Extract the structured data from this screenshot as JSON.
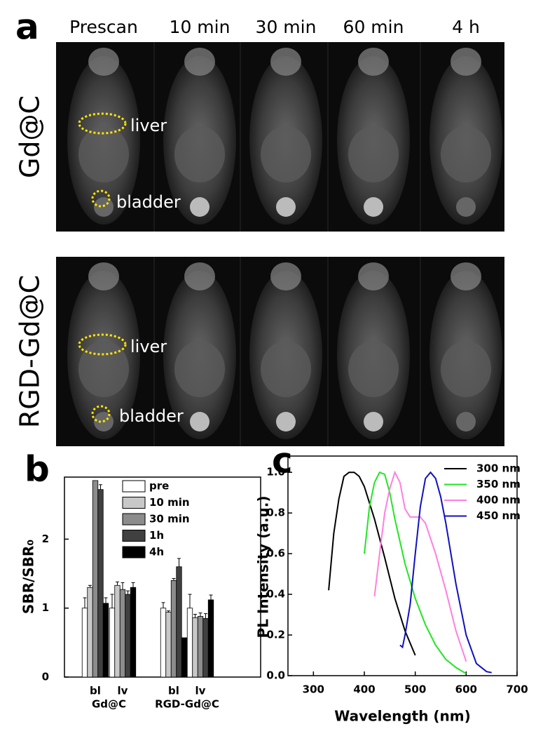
{
  "panel_a": {
    "label": "a",
    "columns": [
      "Prescan",
      "10 min",
      "30 min",
      "60 min",
      "4 h"
    ],
    "rows": [
      {
        "label": "Gd@C",
        "annotations": [
          "liver",
          "bladder"
        ]
      },
      {
        "label": "RGD-Gd@C",
        "annotations": [
          "liver",
          "bladder"
        ]
      }
    ]
  },
  "chart_data": [
    {
      "type": "bar",
      "panel_label": "b",
      "ylabel": "SBR/SBR₀",
      "categories": [
        "bl",
        "lv",
        "bl",
        "lv"
      ],
      "group_labels": [
        "Gd@C",
        "RGD-Gd@C"
      ],
      "ylim": [
        0,
        2.9
      ],
      "yticks": [
        0,
        1,
        2
      ],
      "legend": "top-right",
      "series": [
        {
          "name": "pre",
          "color": "#ffffff",
          "values": [
            1.0,
            1.0,
            1.0,
            1.0
          ],
          "errors": [
            0.15,
            0.2,
            0.08,
            0.2
          ]
        },
        {
          "name": "10 min",
          "color": "#c8c8c8",
          "values": [
            1.3,
            1.33,
            0.94,
            0.86
          ],
          "errors": [
            0.03,
            0.05,
            0.02,
            0.05
          ]
        },
        {
          "name": "30 min",
          "color": "#8c8c8c",
          "values": [
            2.85,
            1.27,
            1.4,
            0.88
          ],
          "errors": [
            0.0,
            0.1,
            0.03,
            0.05
          ]
        },
        {
          "name": "1h",
          "color": "#404040",
          "values": [
            2.72,
            1.2,
            1.6,
            0.85
          ],
          "errors": [
            0.07,
            0.05,
            0.12,
            0.07
          ]
        },
        {
          "name": "4h",
          "color": "#000000",
          "values": [
            1.07,
            1.3,
            0.57,
            1.12
          ],
          "errors": [
            0.08,
            0.07,
            0.0,
            0.07
          ]
        }
      ]
    },
    {
      "type": "line",
      "panel_label": "c",
      "xlabel": "Wavelength (nm)",
      "ylabel": "PL Intensity (a.u.)",
      "xlim": [
        250,
        700
      ],
      "xticks": [
        300,
        400,
        500,
        600,
        700
      ],
      "ylim": [
        0,
        1.08
      ],
      "yticks": [
        {
          "value": 0,
          "label": "0.0"
        },
        0.2,
        0.4,
        0.6,
        0.8,
        {
          "value": 1,
          "label": "1.0"
        }
      ],
      "legend": "top-right",
      "series": [
        {
          "name": "300 nm",
          "color": "#000000",
          "x": [
            330,
            340,
            350,
            360,
            370,
            380,
            390,
            400,
            420,
            440,
            460,
            480,
            500
          ],
          "values": [
            0.42,
            0.7,
            0.87,
            0.98,
            1.0,
            1.0,
            0.98,
            0.93,
            0.77,
            0.58,
            0.38,
            0.22,
            0.1
          ]
        },
        {
          "name": "350 nm",
          "color": "#22e622",
          "x": [
            400,
            410,
            420,
            430,
            440,
            450,
            460,
            480,
            500,
            520,
            540,
            560,
            580,
            600
          ],
          "values": [
            0.6,
            0.83,
            0.95,
            1.0,
            0.99,
            0.9,
            0.77,
            0.55,
            0.38,
            0.25,
            0.15,
            0.08,
            0.04,
            0.01
          ]
        },
        {
          "name": "400 nm",
          "color": "#ff7fe0",
          "x": [
            420,
            430,
            440,
            450,
            460,
            470,
            480,
            490,
            500,
            510,
            520,
            540,
            560,
            580,
            600
          ],
          "values": [
            0.39,
            0.6,
            0.8,
            0.92,
            1.0,
            0.95,
            0.82,
            0.78,
            0.78,
            0.78,
            0.75,
            0.6,
            0.42,
            0.22,
            0.07
          ]
        },
        {
          "name": "450 nm",
          "color": "#1010c0",
          "x": [
            470,
            475,
            480,
            490,
            500,
            510,
            520,
            530,
            540,
            550,
            560,
            580,
            600,
            620,
            640,
            650
          ],
          "values": [
            0.15,
            0.14,
            0.2,
            0.35,
            0.6,
            0.83,
            0.97,
            1.0,
            0.97,
            0.88,
            0.75,
            0.45,
            0.2,
            0.06,
            0.02,
            0.015
          ]
        }
      ]
    }
  ]
}
